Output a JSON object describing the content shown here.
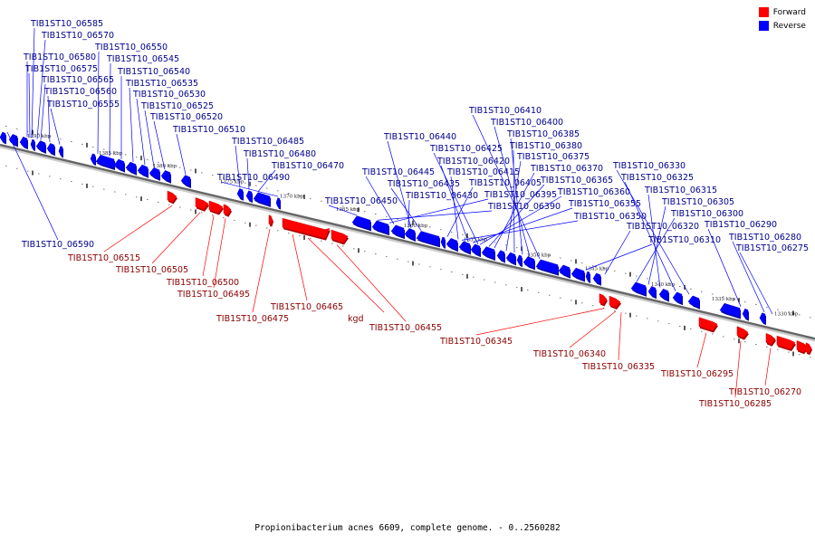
{
  "colors": {
    "forward": "#ff0000",
    "reverse": "#0000ff",
    "backbone": "#999999"
  },
  "legend": {
    "forward_label": "Forward",
    "reverse_label": "Reverse"
  },
  "caption": "Propionibacterium acnes 6609, complete genome. - 0..2560282",
  "scale_ticks": [
    "1390 kbp",
    "1385 kbp",
    "1380 kbp",
    "1375 kbp",
    "1370 kbp",
    "1365 kbp",
    "1360 kbp",
    "1355 kbp",
    "1350 kbp",
    "1345 kbp",
    "1340 kbp",
    "1335 kbp",
    "1330 kbp"
  ],
  "reverse_genes": [
    "TIB1ST10_06585",
    "TIB1ST10_06570",
    "TIB1ST10_06550",
    "TIB1ST10_06580",
    "TIB1ST10_06545",
    "TIB1ST10_06575",
    "TIB1ST10_06540",
    "TIB1ST10_06565",
    "TIB1ST10_06535",
    "TIB1ST10_06560",
    "TIB1ST10_06530",
    "TIB1ST10_06555",
    "TIB1ST10_06525",
    "TIB1ST10_06520",
    "TIB1ST10_06510",
    "TIB1ST10_06485",
    "TIB1ST10_06480",
    "TIB1ST10_06470",
    "TIB1ST10_06490",
    "TIB1ST10_06410",
    "TIB1ST10_06400",
    "TIB1ST10_06385",
    "TIB1ST10_06440",
    "TIB1ST10_06380",
    "TIB1ST10_06425",
    "TIB1ST10_06375",
    "TIB1ST10_06420",
    "TIB1ST10_06370",
    "TIB1ST10_06445",
    "TIB1ST10_06415",
    "TIB1ST10_06365",
    "TIB1ST10_06435",
    "TIB1ST10_06405",
    "TIB1ST10_06360",
    "TIB1ST10_06430",
    "TIB1ST10_06395",
    "TIB1ST10_06355",
    "TIB1ST10_06450",
    "TIB1ST10_06390",
    "TIB1ST10_06350",
    "TIB1ST10_06330",
    "TIB1ST10_06325",
    "TIB1ST10_06315",
    "TIB1ST10_06305",
    "TIB1ST10_06300",
    "TIB1ST10_06320",
    "TIB1ST10_06290",
    "TIB1ST10_06310",
    "TIB1ST10_06280",
    "TIB1ST10_06275",
    "TIB1ST10_06590"
  ],
  "forward_genes": [
    "TIB1ST10_06515",
    "TIB1ST10_06505",
    "TIB1ST10_06500",
    "TIB1ST10_06495",
    "TIB1ST10_06465",
    "kgd",
    "TIB1ST10_06475",
    "TIB1ST10_06455",
    "TIB1ST10_06345",
    "TIB1ST10_06340",
    "TIB1ST10_06335",
    "TIB1ST10_06295",
    "TIB1ST10_06270",
    "TIB1ST10_06285"
  ]
}
